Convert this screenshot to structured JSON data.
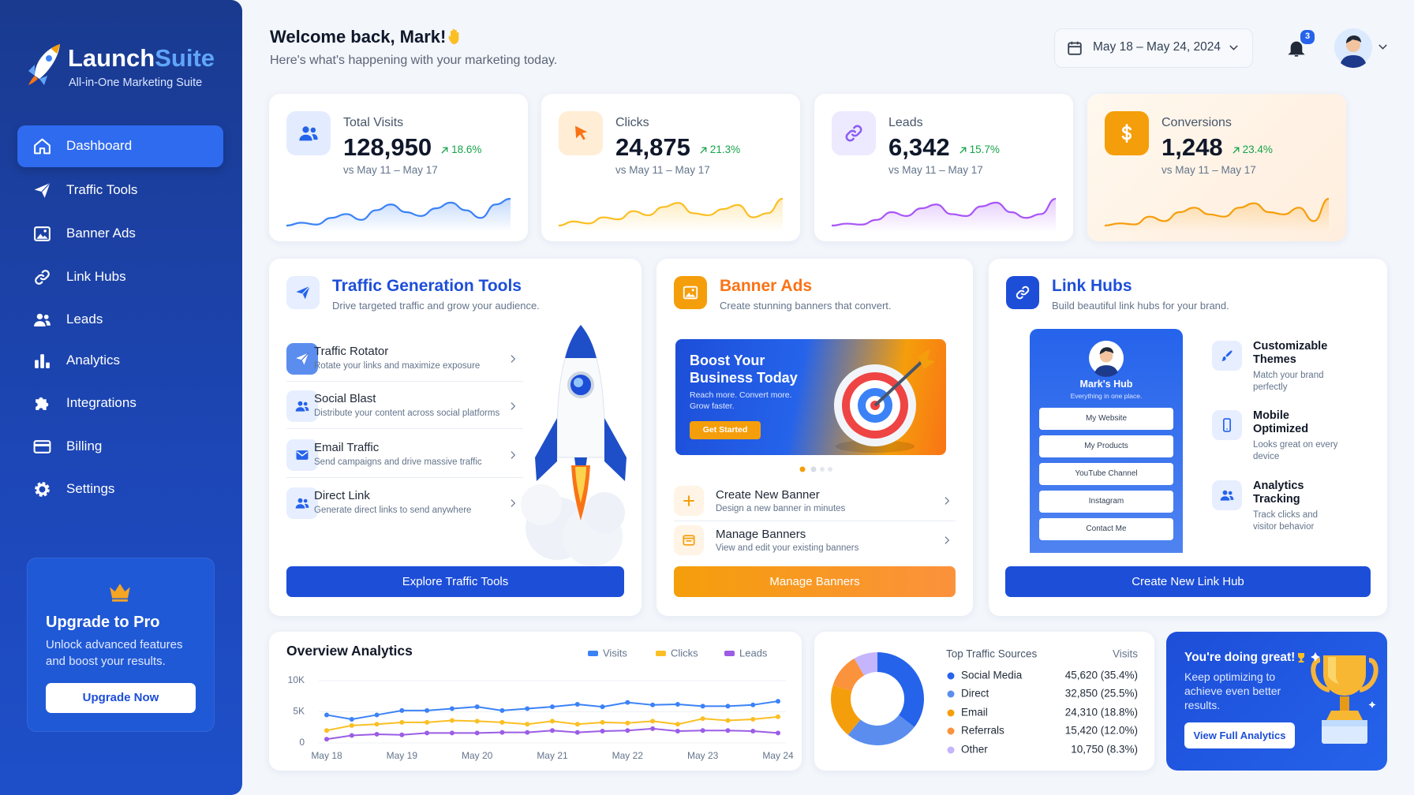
{
  "brand": {
    "name_a": "Launch",
    "name_b": "Suite",
    "tagline": "All-in-One Marketing Suite"
  },
  "nav": [
    "Dashboard",
    "Traffic Tools",
    "Banner Ads",
    "Link Hubs",
    "Leads",
    "Analytics",
    "Integrations",
    "Billing",
    "Settings"
  ],
  "upgrade": {
    "title": "Upgrade to Pro",
    "text": "Unlock advanced features and boost your results.",
    "button": "Upgrade Now"
  },
  "header": {
    "title": "Welcome back, Mark!",
    "subtitle": "Here's what's happening with your marketing today.",
    "date_range": "May 18 – May 24, 2024",
    "notifications": "3"
  },
  "kpis": [
    {
      "label": "Total Visits",
      "value": "128,950",
      "change": "18.6%",
      "compare": "vs May 11 – May 17",
      "color": "#3b82f6",
      "spark": [
        30,
        33,
        31,
        38,
        42,
        36,
        46,
        52,
        44,
        40,
        48,
        54,
        46,
        38,
        52,
        58
      ]
    },
    {
      "label": "Clicks",
      "value": "24,875",
      "change": "21.3%",
      "compare": "vs May 11 – May 17",
      "color": "#fbbf24",
      "spark": [
        30,
        34,
        32,
        38,
        36,
        44,
        40,
        48,
        52,
        42,
        40,
        46,
        50,
        38,
        42,
        56
      ]
    },
    {
      "label": "Leads",
      "value": "6,342",
      "change": "15.7%",
      "compare": "vs May 11 – May 17",
      "color": "#a855f7",
      "spark": [
        30,
        32,
        31,
        36,
        44,
        40,
        48,
        52,
        42,
        40,
        50,
        54,
        44,
        38,
        42,
        58
      ]
    },
    {
      "label": "Conversions",
      "value": "1,248",
      "change": "23.4%",
      "compare": "vs May 11 – May 17",
      "color": "#f59e0b",
      "spark": [
        32,
        34,
        33,
        40,
        36,
        44,
        48,
        42,
        40,
        48,
        52,
        44,
        42,
        48,
        36,
        56
      ]
    }
  ],
  "traffic": {
    "title": "Traffic Generation Tools",
    "subtitle": "Drive targeted traffic and grow your audience.",
    "items": [
      {
        "title": "Traffic Rotator",
        "desc": "Rotate your links and maximize exposure"
      },
      {
        "title": "Social Blast",
        "desc": "Distribute your content across social platforms"
      },
      {
        "title": "Email Traffic",
        "desc": "Send campaigns and drive massive traffic"
      },
      {
        "title": "Direct Link",
        "desc": "Generate direct links to send anywhere"
      }
    ],
    "button": "Explore Traffic Tools"
  },
  "banners": {
    "title": "Banner Ads",
    "subtitle": "Create stunning banners that convert.",
    "promo": {
      "title": "Boost Your Business Today",
      "text": "Reach more. Convert more. Grow faster.",
      "button": "Get Started"
    },
    "items": [
      {
        "title": "Create New Banner",
        "desc": "Design a new banner in minutes"
      },
      {
        "title": "Manage Banners",
        "desc": "View and edit your existing banners"
      }
    ],
    "button": "Manage Banners"
  },
  "links": {
    "title": "Link Hubs",
    "subtitle": "Build beautiful link hubs for your brand.",
    "hub": {
      "name": "Mark's Hub",
      "tagline": "Everything in one place.",
      "links": [
        "My Website",
        "My Products",
        "YouTube Channel",
        "Instagram",
        "Contact Me"
      ]
    },
    "features": [
      {
        "title": "Customizable Themes",
        "desc": "Match your brand perfectly"
      },
      {
        "title": "Mobile Optimized",
        "desc": "Looks great on every device"
      },
      {
        "title": "Analytics Tracking",
        "desc": "Track clicks and visitor behavior"
      }
    ],
    "button": "Create New Link Hub"
  },
  "chart_data": [
    {
      "type": "line",
      "title": "Overview Analytics",
      "categories": [
        "May 18",
        null,
        null,
        "May 19",
        null,
        null,
        "May 20",
        null,
        null,
        "May 21",
        null,
        null,
        "May 22",
        null,
        null,
        "May 23",
        null,
        null,
        "May 24"
      ],
      "series": [
        {
          "name": "Visits",
          "color": "#3b82f6",
          "values": [
            4500,
            3800,
            4500,
            5200,
            5200,
            5500,
            5800,
            5200,
            5500,
            5800,
            6200,
            5800,
            6500,
            6100,
            6200,
            5900,
            5900,
            6100,
            6700
          ]
        },
        {
          "name": "Clicks",
          "color": "#fbbf24",
          "values": [
            2000,
            2800,
            3000,
            3300,
            3300,
            3600,
            3500,
            3300,
            3000,
            3500,
            3000,
            3300,
            3200,
            3500,
            3000,
            3900,
            3600,
            3800,
            4200
          ]
        },
        {
          "name": "Leads",
          "color": "#9b5de5",
          "values": [
            600,
            1200,
            1400,
            1300,
            1600,
            1600,
            1600,
            1700,
            1700,
            2000,
            1700,
            1900,
            2000,
            2300,
            1900,
            2000,
            2000,
            1900,
            1600
          ]
        }
      ],
      "ylim": [
        0,
        10000
      ],
      "yticks": [
        0,
        {
          "value": 5000,
          "label": "5K"
        },
        {
          "value": 10000,
          "label": "10K"
        }
      ],
      "grid": true
    },
    {
      "type": "pie",
      "title": "Top Traffic Sources",
      "value_header": "Visits",
      "categories": [
        "Social Media",
        "Direct",
        "Email",
        "Referrals",
        "Other"
      ],
      "values": [
        35.4,
        25.5,
        18.8,
        12.0,
        8.3
      ],
      "value_labels": [
        "45,620 (35.4%)",
        "32,850 (25.5%)",
        "24,310 (18.8%)",
        "15,420 (12.0%)",
        "10,750 (8.3%)"
      ],
      "colors": [
        "#2563eb",
        "#5b8def",
        "#f59e0b",
        "#fb923c",
        "#c4b5fd"
      ]
    }
  ],
  "cheer": {
    "title": "You're doing great!",
    "text": "Keep optimizing to achieve even better results.",
    "button": "View Full Analytics"
  }
}
